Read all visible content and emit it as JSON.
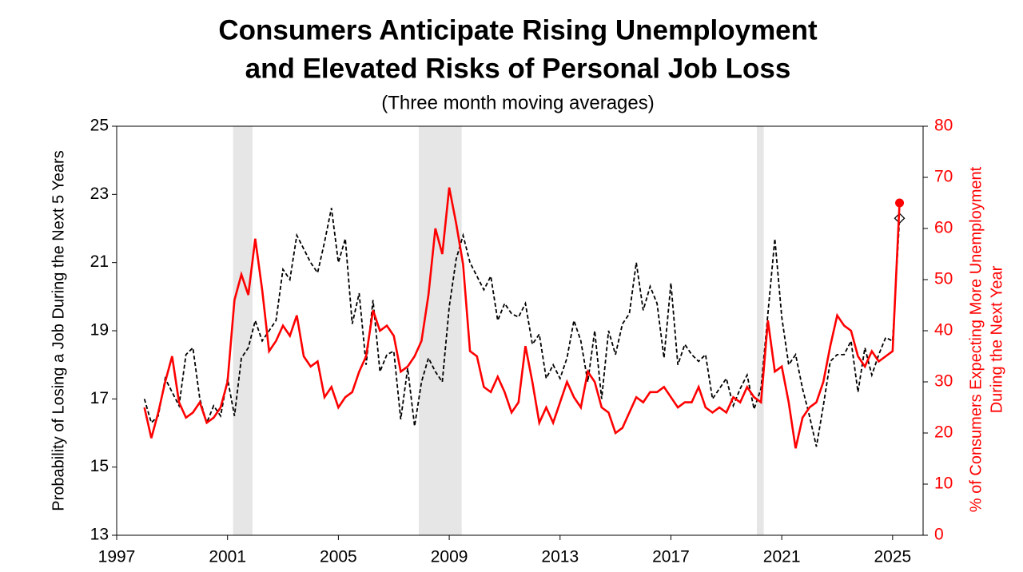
{
  "chart_data": {
    "type": "line",
    "title": [
      "Consumers Anticipate Rising Unemployment",
      "and Elevated Risks of Personal Job Loss"
    ],
    "subtitle": "(Three month moving averages)",
    "ylabel": "Probability of Losing a Job During the Next 5 Years",
    "y2label": [
      "% of Consumers Expecting More Unemployment",
      "During the Next Year"
    ],
    "xlim": [
      1997,
      2026.1
    ],
    "xticks": [
      1997,
      2001,
      2005,
      2009,
      2013,
      2017,
      2021,
      2025
    ],
    "ylim": [
      13,
      25
    ],
    "yticks": [
      13,
      15,
      17,
      19,
      21,
      23,
      25
    ],
    "y2lim": [
      0,
      80
    ],
    "y2ticks": [
      0,
      10,
      20,
      30,
      40,
      50,
      60,
      70,
      80
    ],
    "grid": false,
    "shaded_periods": [
      [
        2001.2,
        2001.9
      ],
      [
        2007.9,
        2009.45
      ],
      [
        2020.1,
        2020.35
      ]
    ],
    "shade_color": "#e6e6e6",
    "x": [
      1998,
      1998.25,
      1998.5,
      1998.75,
      1999,
      1999.25,
      1999.5,
      1999.75,
      2000,
      2000.25,
      2000.5,
      2000.75,
      2001,
      2001.25,
      2001.5,
      2001.75,
      2002,
      2002.25,
      2002.5,
      2002.75,
      2003,
      2003.25,
      2003.5,
      2003.75,
      2004,
      2004.25,
      2004.5,
      2004.75,
      2005,
      2005.25,
      2005.5,
      2005.75,
      2006,
      2006.25,
      2006.5,
      2006.75,
      2007,
      2007.25,
      2007.5,
      2007.75,
      2008,
      2008.25,
      2008.5,
      2008.75,
      2009,
      2009.25,
      2009.5,
      2009.75,
      2010,
      2010.25,
      2010.5,
      2010.75,
      2011,
      2011.25,
      2011.5,
      2011.75,
      2012,
      2012.25,
      2012.5,
      2012.75,
      2013,
      2013.25,
      2013.5,
      2013.75,
      2014,
      2014.25,
      2014.5,
      2014.75,
      2015,
      2015.25,
      2015.5,
      2015.75,
      2016,
      2016.25,
      2016.5,
      2016.75,
      2017,
      2017.25,
      2017.5,
      2017.75,
      2018,
      2018.25,
      2018.5,
      2018.75,
      2019,
      2019.25,
      2019.5,
      2019.75,
      2020,
      2020.25,
      2020.5,
      2020.75,
      2021,
      2021.25,
      2021.5,
      2021.75,
      2022,
      2022.25,
      2022.5,
      2022.75,
      2023,
      2023.25,
      2023.5,
      2023.75,
      2024,
      2024.25,
      2024.5,
      2024.75,
      2025,
      2025.25
    ],
    "series": [
      {
        "color": "#000000",
        "dash": true,
        "axis": "y",
        "end_marker": "diamond",
        "values": [
          17.0,
          16.3,
          16.5,
          17.6,
          17.2,
          16.8,
          18.3,
          18.5,
          17.0,
          16.3,
          16.8,
          16.5,
          17.6,
          16.5,
          18.2,
          18.5,
          19.3,
          18.7,
          19.0,
          19.3,
          20.8,
          20.5,
          21.8,
          21.4,
          21.0,
          20.7,
          21.6,
          22.6,
          21.0,
          21.7,
          19.2,
          20.1,
          18.0,
          19.9,
          17.8,
          18.3,
          18.4,
          16.4,
          17.9,
          16.2,
          17.5,
          18.2,
          17.8,
          17.5,
          19.7,
          21.1,
          21.8,
          21.0,
          20.6,
          20.2,
          20.6,
          19.3,
          19.8,
          19.5,
          19.4,
          19.8,
          18.6,
          18.9,
          17.6,
          18.0,
          17.6,
          18.2,
          19.3,
          18.7,
          17.5,
          19.0,
          17.0,
          19.0,
          18.3,
          19.2,
          19.5,
          21.0,
          19.6,
          20.3,
          19.8,
          18.2,
          20.4,
          18.0,
          18.6,
          18.3,
          18.1,
          18.3,
          17.0,
          17.3,
          17.6,
          16.8,
          17.3,
          17.7,
          16.7,
          17.3,
          19.5,
          21.7,
          19.4,
          18.0,
          18.3,
          17.3,
          16.5,
          15.6,
          16.8,
          18.1,
          18.3,
          18.3,
          18.7,
          17.2,
          18.5,
          17.7,
          18.3,
          18.8,
          18.7,
          22.3
        ]
      },
      {
        "color": "#ff0000",
        "dash": false,
        "axis": "y2",
        "end_marker": "circle",
        "values": [
          25,
          19,
          24,
          30,
          35,
          26,
          23,
          24,
          26,
          22,
          23,
          25,
          30,
          46,
          51,
          47,
          58,
          48,
          36,
          38,
          41,
          39,
          43,
          35,
          33,
          34,
          27,
          29,
          25,
          27,
          28,
          32,
          35,
          44,
          40,
          41,
          39,
          32,
          33,
          35,
          38,
          47,
          60,
          55,
          68,
          61,
          53,
          36,
          35,
          29,
          28,
          31,
          28,
          24,
          26,
          37,
          30,
          22,
          25,
          22,
          26,
          30,
          27,
          25,
          32,
          30,
          25,
          24,
          20,
          21,
          24,
          27,
          26,
          28,
          28,
          29,
          27,
          25,
          26,
          26,
          29,
          25,
          24,
          25,
          24,
          27,
          26,
          29,
          27,
          26,
          42,
          32,
          33,
          26,
          17,
          23,
          25,
          26,
          30,
          37,
          43,
          41,
          40,
          35,
          33,
          36,
          34,
          35,
          36,
          65
        ]
      }
    ]
  }
}
